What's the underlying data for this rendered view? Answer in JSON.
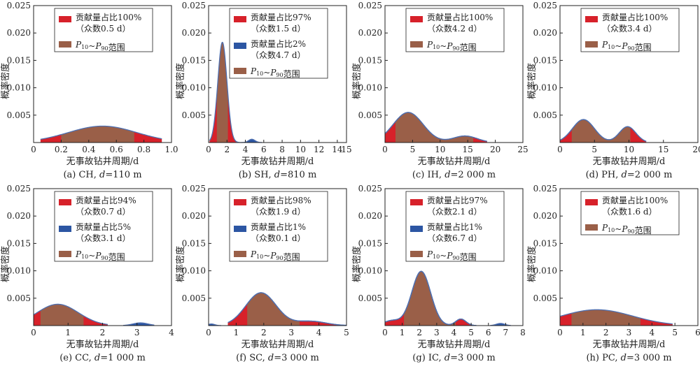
{
  "colors": {
    "main_mode": "#d7212a",
    "second_mode": "#2c56a3",
    "p10_p90": "#9a5f48",
    "curve": "#4e6fb0"
  },
  "chart_data": [
    {
      "type": "area",
      "panel": "a",
      "caption": "(a) CH, d=110 m",
      "caption_parts": [
        "(a) CH, ",
        "d",
        "=110 m"
      ],
      "xlabel": "无事故钻井周期/d",
      "ylabel": "概率密度",
      "xlim": [
        0,
        1.0
      ],
      "ylim": [
        0,
        0.025
      ],
      "xticks": [
        "0",
        "0.2",
        "0.4",
        "0.6",
        "0.8",
        "1.0"
      ],
      "yticks": [
        "0.005",
        "0.010",
        "0.015",
        "0.020",
        "0.025"
      ],
      "modes": [
        {
          "mean": 0.5,
          "sd": 0.25,
          "peak": 0.003,
          "range": [
            0.05,
            0.93
          ],
          "color": "main_mode"
        }
      ],
      "p10_p90": [
        0.2,
        0.73
      ],
      "legend": [
        {
          "label_lines": [
            "贡献量占比100%",
            "（众数0.5 d）"
          ],
          "color": "main_mode"
        },
        {
          "label": "P10~P90范围",
          "color": "p10_p90",
          "pmath": true
        }
      ]
    },
    {
      "type": "area",
      "panel": "b",
      "caption": "(b) SH, d=810 m",
      "caption_parts": [
        "(b) SH, ",
        "d",
        "=810 m"
      ],
      "xlabel": "无事故钻井周期/d",
      "ylabel": "概率密度",
      "xlim": [
        0,
        15
      ],
      "ylim": [
        0,
        0.025
      ],
      "xticks": [
        "0",
        "2",
        "4",
        "6",
        "8",
        "10",
        "12",
        "14",
        "15"
      ],
      "yticks": [
        "0.005",
        "0.010",
        "0.015",
        "0.020",
        "0.025"
      ],
      "modes": [
        {
          "mean": 1.5,
          "sd": 0.5,
          "peak": 0.0183,
          "range": [
            0.1,
            3.4
          ],
          "color": "main_mode"
        },
        {
          "mean": 4.7,
          "sd": 0.35,
          "peak": 0.0006,
          "range": [
            3.4,
            5.8
          ],
          "color": "second_mode"
        }
      ],
      "p10_p90": [
        0.9,
        2.1
      ],
      "legend": [
        {
          "label_lines": [
            "贡献量占比97%",
            "（众数1.5 d）"
          ],
          "color": "main_mode"
        },
        {
          "label_lines": [
            "贡献量占比2%",
            "（众数4.7 d）"
          ],
          "color": "second_mode"
        },
        {
          "label": "P10~P90范围",
          "color": "p10_p90",
          "pmath": true
        }
      ]
    },
    {
      "type": "area",
      "panel": "c",
      "caption": "(c) IH, d=2 000 m",
      "caption_parts": [
        "(c) IH, ",
        "d",
        "=2 000 m"
      ],
      "xlabel": "无事故钻井周期/d",
      "ylabel": "概率密度",
      "xlim": [
        0,
        25
      ],
      "ylim": [
        0,
        0.025
      ],
      "xticks": [
        "0",
        "5",
        "10",
        "15",
        "20",
        "25"
      ],
      "yticks": [
        "0.005",
        "0.010",
        "0.015",
        "0.020",
        "0.025"
      ],
      "modes": [
        {
          "mean": 4.2,
          "sd": 2.7,
          "peak": 0.0055,
          "range": [
            0,
            18.5
          ],
          "color": "main_mode"
        },
        {
          "mean": 14.5,
          "sd": 2.2,
          "peak": 0.0012,
          "range": [
            0,
            18.5
          ],
          "color": "main_mode"
        }
      ],
      "p10_p90": [
        1.9,
        16.0
      ],
      "legend": [
        {
          "label_lines": [
            "贡献量占比100%",
            "（众数4.2 d）"
          ],
          "color": "main_mode"
        },
        {
          "label": "P10~P90范围",
          "color": "p10_p90",
          "pmath": true
        }
      ]
    },
    {
      "type": "area",
      "panel": "d",
      "caption": "(d) PH, d=2 000 m",
      "caption_parts": [
        "(d) PH, ",
        "d",
        "=2 000 m"
      ],
      "xlabel": "无事故钻井周期/d",
      "ylabel": "概率密度",
      "xlim": [
        0,
        20
      ],
      "ylim": [
        0,
        0.025
      ],
      "xticks": [
        "0",
        "5",
        "10",
        "15",
        "20"
      ],
      "yticks": [
        "0.005",
        "0.010",
        "0.015",
        "0.020",
        "0.025"
      ],
      "modes": [
        {
          "mean": 3.4,
          "sd": 1.6,
          "peak": 0.0042,
          "range": [
            0,
            12.5
          ],
          "color": "main_mode"
        },
        {
          "mean": 9.8,
          "sd": 1.2,
          "peak": 0.0029,
          "range": [
            0,
            12.5
          ],
          "color": "main_mode"
        }
      ],
      "p10_p90": [
        1.7,
        10.2
      ],
      "legend": [
        {
          "label_lines": [
            "贡献量占比100%",
            "（众数3.4 d）"
          ],
          "color": "main_mode"
        },
        {
          "label": "P10~P90范围",
          "color": "p10_p90",
          "pmath": true
        }
      ]
    },
    {
      "type": "area",
      "panel": "e",
      "caption": "(e) CC, d=1 000 m",
      "caption_parts": [
        "(e) CC, ",
        "d",
        "=1 000 m"
      ],
      "xlabel": "无事故钻井周期/d",
      "ylabel": "概率密度",
      "xlim": [
        0,
        4
      ],
      "ylim": [
        0,
        0.025
      ],
      "xticks": [
        "0",
        "1",
        "2",
        "3",
        "4"
      ],
      "yticks": [
        "0.005",
        "0.010",
        "0.015",
        "0.020",
        "0.025"
      ],
      "modes": [
        {
          "mean": 0.7,
          "sd": 0.6,
          "peak": 0.0039,
          "range": [
            0,
            2.15
          ],
          "color": "main_mode"
        },
        {
          "mean": 3.1,
          "sd": 0.22,
          "peak": 0.0005,
          "range": [
            2.6,
            3.5
          ],
          "color": "second_mode"
        }
      ],
      "p10_p90": [
        0.2,
        1.45
      ],
      "legend": [
        {
          "label_lines": [
            "贡献量占比94%",
            "（众数0.7 d）"
          ],
          "color": "main_mode"
        },
        {
          "label_lines": [
            "贡献量占比5%",
            "（众数3.1 d）"
          ],
          "color": "second_mode"
        },
        {
          "label": "P10~P90范围",
          "color": "p10_p90",
          "pmath": true
        }
      ]
    },
    {
      "type": "area",
      "panel": "f",
      "caption": "(f) SC, d=3 000 m",
      "caption_parts": [
        "(f) SC, ",
        "d",
        "=3 000 m"
      ],
      "xlabel": "无事故钻井周期/d",
      "ylabel": "概率密度",
      "xlim": [
        0,
        5
      ],
      "ylim": [
        0,
        0.025
      ],
      "xticks": [
        "0",
        "1",
        "2",
        "3",
        "4",
        "5"
      ],
      "yticks": [
        "0.005",
        "0.010",
        "0.015",
        "0.020",
        "0.025"
      ],
      "modes": [
        {
          "mean": 1.9,
          "sd": 0.55,
          "peak": 0.006,
          "range": [
            0.7,
            5.0
          ],
          "color": "main_mode"
        },
        {
          "mean": 3.7,
          "sd": 0.55,
          "peak": 0.0008,
          "range": [
            0.7,
            5.0
          ],
          "color": "main_mode"
        },
        {
          "mean": 0.1,
          "sd": 0.12,
          "peak": 0.0003,
          "range": [
            0,
            0.45
          ],
          "color": "second_mode"
        }
      ],
      "p10_p90": [
        1.4,
        3.3
      ],
      "legend": [
        {
          "label_lines": [
            "贡献量占比98%",
            "（众数1.9 d）"
          ],
          "color": "main_mode"
        },
        {
          "label_lines": [
            "贡献量占比1%",
            "（众数0.1 d）"
          ],
          "color": "second_mode"
        },
        {
          "label": "P10~P90范围",
          "color": "p10_p90",
          "pmath": true
        }
      ]
    },
    {
      "type": "area",
      "panel": "g",
      "caption": "(g) IC, d=3 000 m",
      "caption_parts": [
        "(g) IC, ",
        "d",
        "=3 000 m"
      ],
      "xlabel": "无事故钻井周期/d",
      "ylabel": "概率密度",
      "xlim": [
        0,
        8
      ],
      "ylim": [
        0,
        0.025
      ],
      "xticks": [
        "0",
        "1",
        "2",
        "3",
        "4",
        "5",
        "6",
        "7",
        "8"
      ],
      "yticks": [
        "0.005",
        "0.010",
        "0.015",
        "0.020",
        "0.025"
      ],
      "modes": [
        {
          "mean": 2.1,
          "sd": 0.55,
          "peak": 0.0099,
          "range": [
            0,
            5.3
          ],
          "color": "main_mode"
        },
        {
          "mean": 0.4,
          "sd": 0.5,
          "peak": 0.0009,
          "range": [
            0,
            5.3
          ],
          "color": "main_mode"
        },
        {
          "mean": 4.4,
          "sd": 0.3,
          "peak": 0.0012,
          "range": [
            0,
            5.3
          ],
          "color": "main_mode"
        },
        {
          "mean": 6.7,
          "sd": 0.25,
          "peak": 0.0004,
          "range": [
            6.1,
            7.3
          ],
          "color": "second_mode"
        }
      ],
      "p10_p90": [
        1.1,
        4.1
      ],
      "legend": [
        {
          "label_lines": [
            "贡献量占比97%",
            "（众数2.1 d）"
          ],
          "color": "main_mode"
        },
        {
          "label_lines": [
            "贡献量占比1%",
            "（众数6.7 d）"
          ],
          "color": "second_mode"
        },
        {
          "label": "P10~P90范围",
          "color": "p10_p90",
          "pmath": true
        }
      ]
    },
    {
      "type": "area",
      "panel": "h",
      "caption": "(h) PC, d=3 000 m",
      "caption_parts": [
        "(h) PC, ",
        "d",
        "=3 000 m"
      ],
      "xlabel": "无事故钻井周期/d",
      "ylabel": "概率密度",
      "xlim": [
        0,
        6
      ],
      "ylim": [
        0,
        0.025
      ],
      "xticks": [
        "0",
        "1",
        "2",
        "3",
        "4",
        "5",
        "6"
      ],
      "yticks": [
        "0.005",
        "0.010",
        "0.015",
        "0.020",
        "0.025"
      ],
      "modes": [
        {
          "mean": 1.6,
          "sd": 1.55,
          "peak": 0.0029,
          "range": [
            0,
            4.9
          ],
          "color": "main_mode"
        }
      ],
      "p10_p90": [
        0.5,
        3.5
      ],
      "legend": [
        {
          "label_lines": [
            "贡献量占比100%",
            "（众数1.6 d）"
          ],
          "color": "main_mode"
        },
        {
          "label": "P10~P90范围",
          "color": "p10_p90",
          "pmath": true
        }
      ]
    }
  ]
}
